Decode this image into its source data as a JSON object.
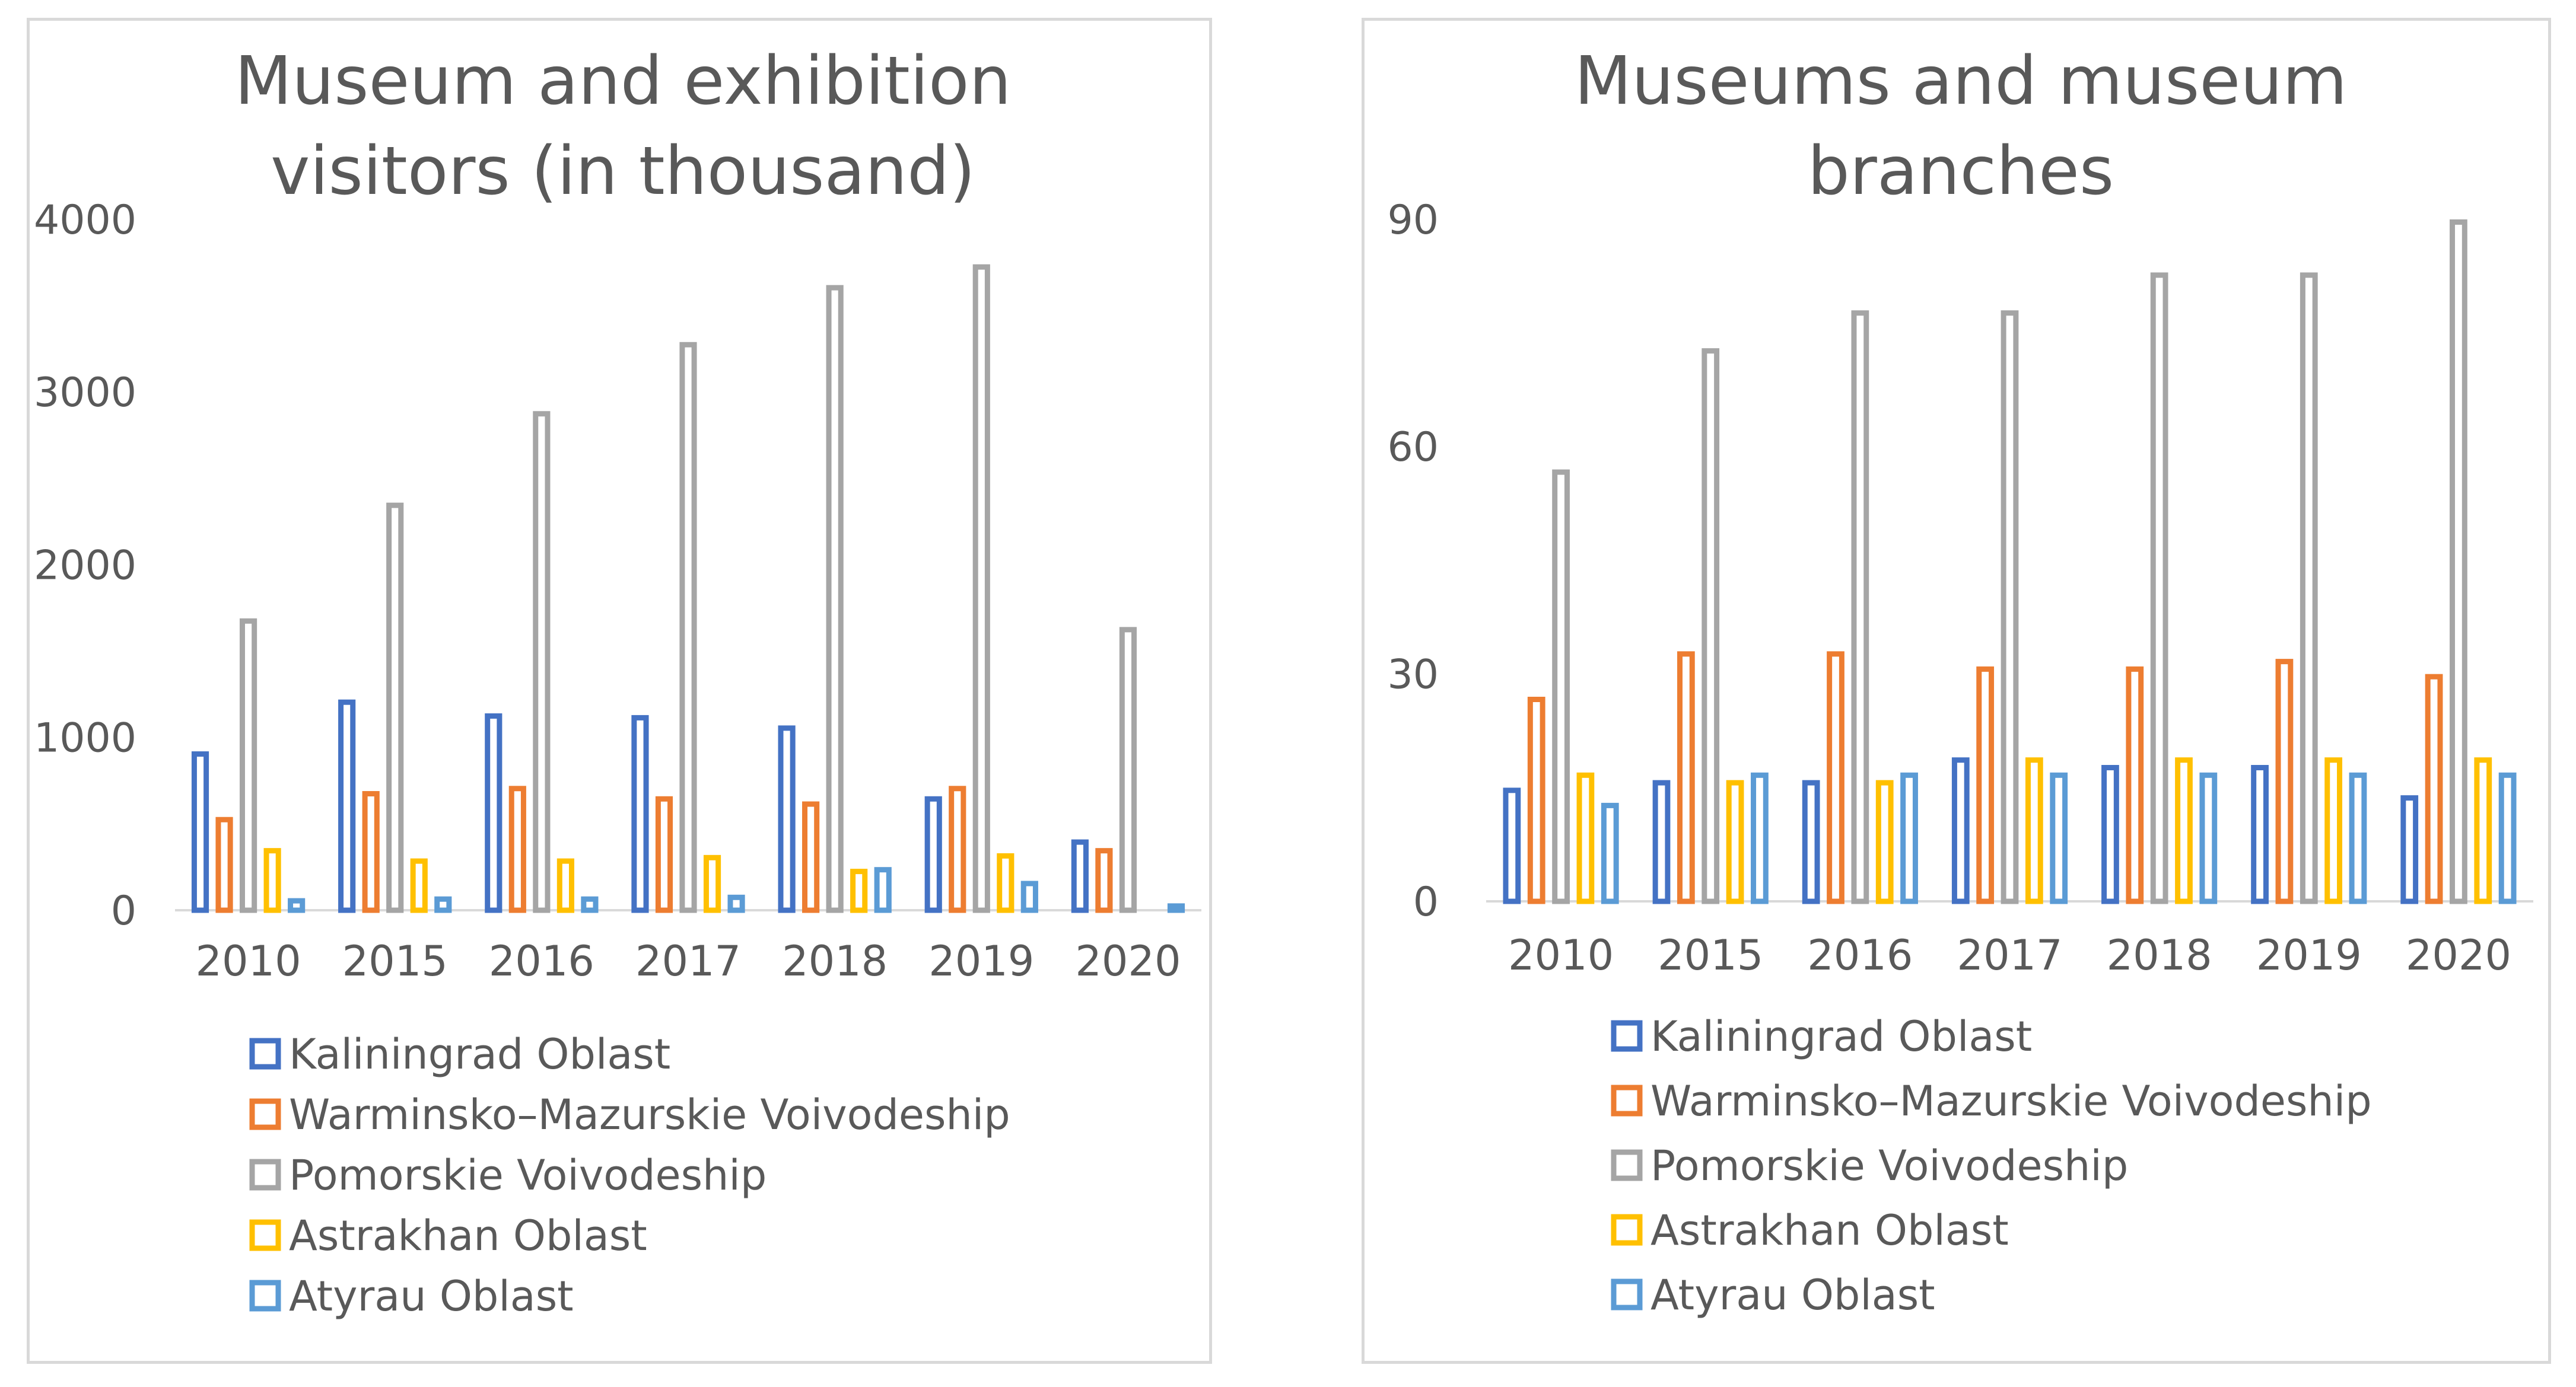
{
  "chart_data": [
    {
      "type": "bar",
      "title_lines": [
        "Museum and exhibition",
        "visitors (in thousand)"
      ],
      "categories": [
        "2010",
        "2015",
        "2016",
        "2017",
        "2018",
        "2019",
        "2020"
      ],
      "ylim": [
        0,
        4000
      ],
      "yticks": [
        0,
        1000,
        2000,
        3000,
        4000
      ],
      "xlabel": "",
      "ylabel": "",
      "grid": false,
      "legend_position": "bottom",
      "series": [
        {
          "name": "Kaliningrad Oblast",
          "color": "#4472c4",
          "values": [
            920,
            1220,
            1140,
            1130,
            1070,
            660,
            410
          ]
        },
        {
          "name": "Warminsko–Mazurskie Voivodeship",
          "color": "#ed7d31",
          "values": [
            540,
            690,
            720,
            660,
            630,
            720,
            360
          ]
        },
        {
          "name": "Pomorskie Voivodeship",
          "color": "#a5a5a5",
          "values": [
            1690,
            2360,
            2890,
            3290,
            3620,
            3740,
            1640
          ]
        },
        {
          "name": "Astrakhan Oblast",
          "color": "#ffc000",
          "values": [
            360,
            300,
            300,
            320,
            240,
            330,
            0
          ]
        },
        {
          "name": "Atyrau Oblast",
          "color": "#5b9bd5",
          "values": [
            70,
            80,
            80,
            90,
            250,
            170,
            40
          ]
        }
      ]
    },
    {
      "type": "bar",
      "title_lines": [
        "Museums and museum",
        "branches"
      ],
      "categories": [
        "2010",
        "2015",
        "2016",
        "2017",
        "2018",
        "2019",
        "2020"
      ],
      "ylim": [
        0,
        90
      ],
      "yticks": [
        0,
        30,
        60,
        90
      ],
      "xlabel": "",
      "ylabel": "",
      "grid": false,
      "legend_position": "bottom",
      "series": [
        {
          "name": "Kaliningrad Oblast",
          "color": "#4472c4",
          "values": [
            15,
            16,
            16,
            19,
            18,
            18,
            14
          ]
        },
        {
          "name": "Warminsko–Mazurskie Voivodeship",
          "color": "#ed7d31",
          "values": [
            27,
            33,
            33,
            31,
            31,
            32,
            30
          ]
        },
        {
          "name": "Pomorskie Voivodeship",
          "color": "#a5a5a5",
          "values": [
            57,
            73,
            78,
            78,
            83,
            83,
            90
          ]
        },
        {
          "name": "Astrakhan Oblast",
          "color": "#ffc000",
          "values": [
            17,
            16,
            16,
            19,
            19,
            19,
            19
          ]
        },
        {
          "name": "Atyrau Oblast",
          "color": "#5b9bd5",
          "values": [
            13,
            17,
            17,
            17,
            17,
            17,
            17
          ]
        }
      ]
    }
  ]
}
